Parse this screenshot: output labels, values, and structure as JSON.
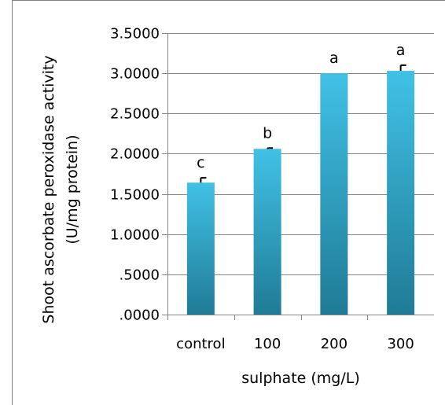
{
  "chart_data": {
    "type": "bar",
    "categories": [
      "control",
      "100",
      "200",
      "300"
    ],
    "values": [
      1.64,
      2.06,
      3.0,
      3.03
    ],
    "errors": [
      0.06,
      0.01,
      0.0,
      0.07
    ],
    "significance_labels": [
      "c",
      "b",
      "a",
      "a"
    ],
    "title": "",
    "xlabel": "sulphate (mg/L)",
    "ylabel_lines": [
      "Shoot ascorbate peroxidase activity",
      "(U/mg protein)"
    ],
    "ylim": [
      0,
      3.5
    ],
    "yticks": [
      0,
      0.5,
      1.0,
      1.5,
      2.0,
      2.5,
      3.0,
      3.5
    ],
    "ytick_labels": [
      ".0000",
      ".5000",
      "1.0000",
      "1.5000",
      "2.0000",
      "2.5000",
      "3.0000",
      "3.5000"
    ],
    "grid": true,
    "legend": "none",
    "colors": {
      "bar_light": "#41c1e6",
      "bar_dark": "#1f7b96",
      "grid": "#868686"
    }
  }
}
